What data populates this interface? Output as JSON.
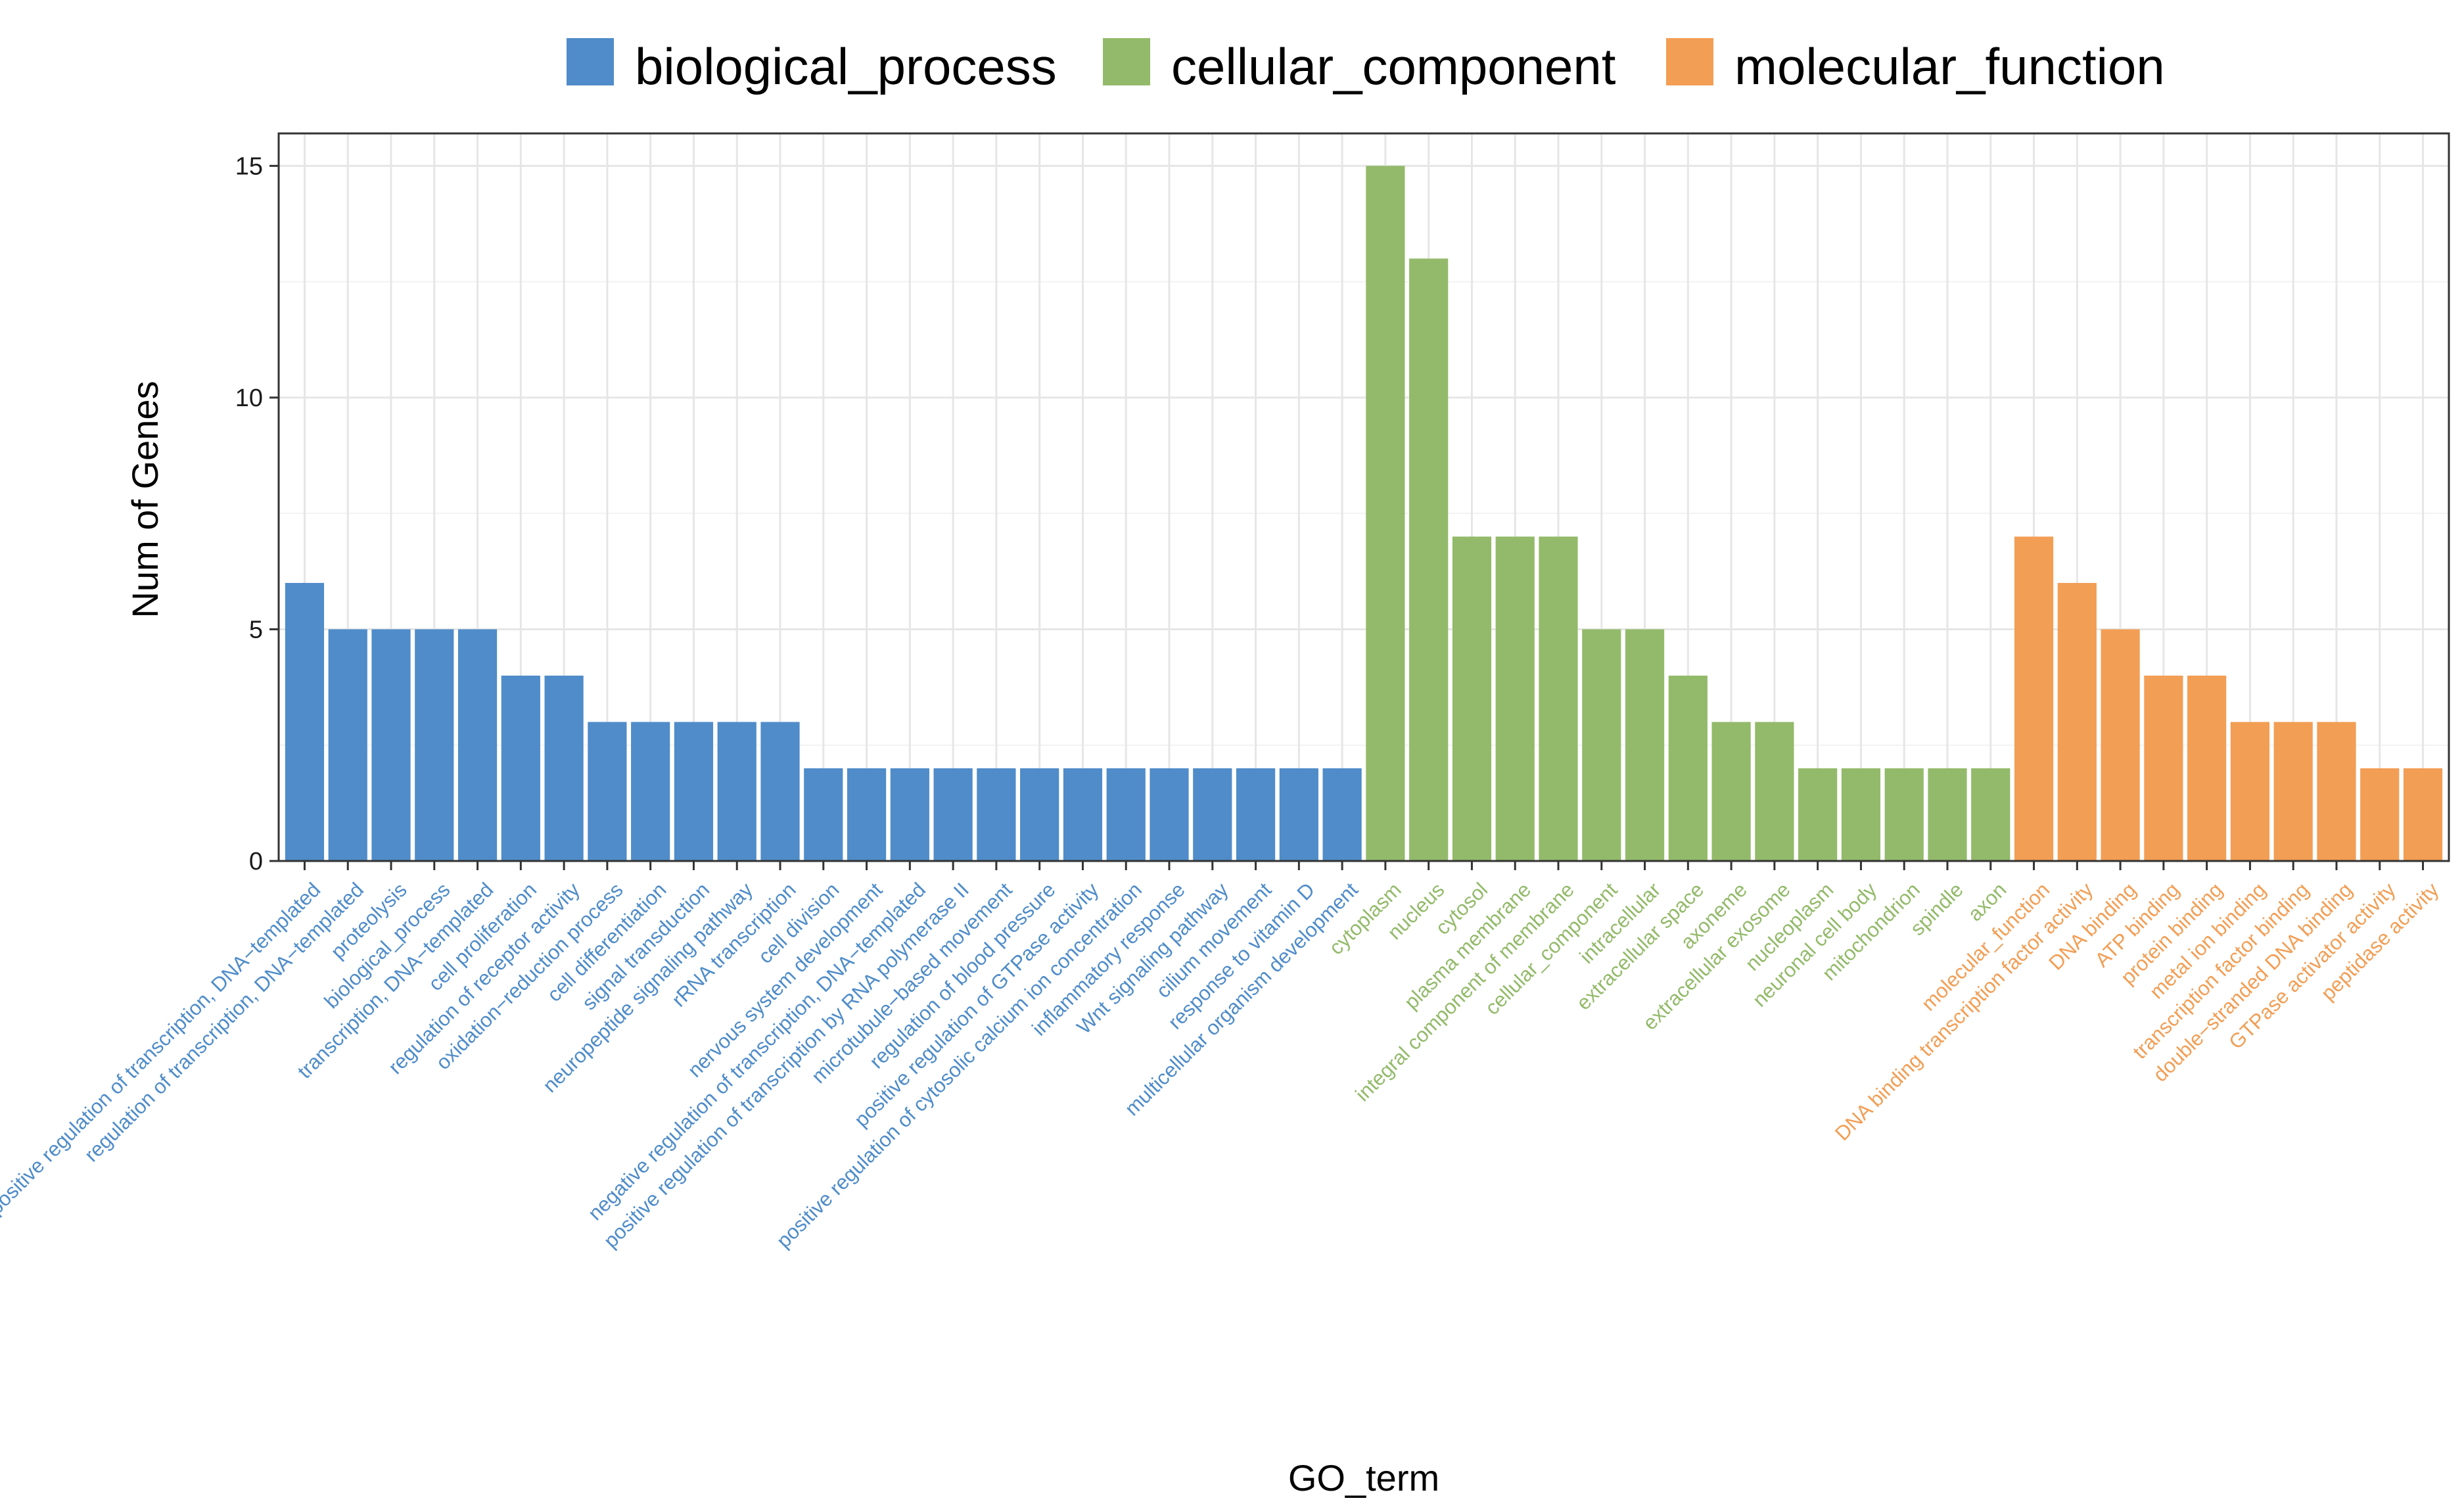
{
  "chart_data": {
    "type": "bar",
    "xlabel": "GO_term",
    "ylabel": "Num of Genes",
    "ylim": [
      0,
      15.7
    ],
    "yticks": [
      0,
      5,
      10,
      15
    ],
    "grid": true,
    "legend_position": "top",
    "series": [
      {
        "name": "biological_process",
        "color": "#4F8CC9",
        "categories": [
          "positive regulation of transcription, DNA−templated",
          "regulation of transcription, DNA−templated",
          "proteolysis",
          "biological_process",
          "transcription, DNA−templated",
          "cell proliferation",
          "regulation of receptor activity",
          "oxidation−reduction process",
          "cell differentiation",
          "signal transduction",
          "neuropeptide signaling pathway",
          "rRNA transcription",
          "cell division",
          "nervous system development",
          "negative regulation of transcription, DNA−templated",
          "positive regulation of transcription by RNA polymerase II",
          "microtubule−based movement",
          "regulation of blood pressure",
          "positive regulation of GTPase activity",
          "positive regulation of cytosolic calcium ion concentration",
          "inflammatory response",
          "Wnt signaling pathway",
          "cilium movement",
          "response to vitamin D",
          "multicellular organism development"
        ],
        "values": [
          6,
          5,
          5,
          5,
          5,
          4,
          4,
          3,
          3,
          3,
          3,
          3,
          2,
          2,
          2,
          2,
          2,
          2,
          2,
          2,
          2,
          2,
          2,
          2,
          2
        ]
      },
      {
        "name": "cellular_component",
        "color": "#93BA6A",
        "categories": [
          "cytoplasm",
          "nucleus",
          "cytosol",
          "plasma membrane",
          "integral component of membrane",
          "cellular_component",
          "intracellular",
          "extracellular space",
          "axoneme",
          "extracellular exosome",
          "nucleoplasm",
          "neuronal cell body",
          "mitochondrion",
          "spindle",
          "axon"
        ],
        "values": [
          15,
          13,
          7,
          7,
          7,
          5,
          5,
          4,
          3,
          3,
          2,
          2,
          2,
          2,
          2
        ]
      },
      {
        "name": "molecular_function",
        "color": "#F29E55",
        "categories": [
          "molecular_function",
          "DNA binding transcription factor activity",
          "DNA binding",
          "ATP binding",
          "protein binding",
          "metal ion binding",
          "transcription factor binding",
          "double−stranded DNA binding",
          "GTPase activator activity",
          "peptidase activity"
        ],
        "values": [
          7,
          6,
          5,
          4,
          4,
          3,
          3,
          3,
          2,
          2
        ]
      }
    ]
  }
}
